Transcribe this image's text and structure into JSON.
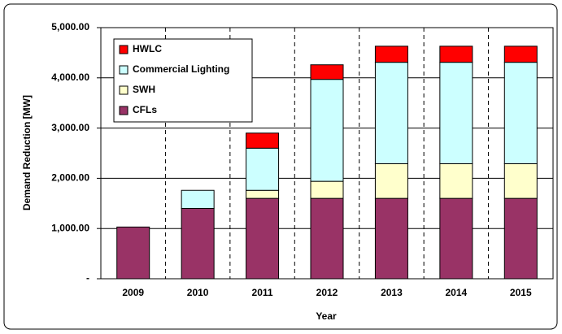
{
  "chart_data": {
    "type": "stacked_bar",
    "x_label": "Year",
    "y_label": "Demand Reduction [MW]",
    "categories": [
      "2009",
      "2010",
      "2011",
      "2012",
      "2013",
      "2014",
      "2015"
    ],
    "series": [
      {
        "name": "CFLs",
        "color": "#993366",
        "values": [
          1030,
          1400,
          1600,
          1600,
          1600,
          1600,
          1600
        ]
      },
      {
        "name": "SWH",
        "color": "#FFFFCC",
        "values": [
          0,
          0,
          160,
          340,
          690,
          690,
          690
        ]
      },
      {
        "name": "Commercial Lighting",
        "color": "#CCFFFF",
        "values": [
          0,
          360,
          840,
          2030,
          2020,
          2020,
          2020
        ]
      },
      {
        "name": "HWLC",
        "color": "#FF0000",
        "values": [
          0,
          0,
          300,
          290,
          320,
          320,
          320
        ]
      }
    ],
    "ylim": [
      0,
      5000
    ],
    "yticks": [
      {
        "value": 0,
        "label": "-"
      },
      {
        "value": 1000,
        "label": "1,000.00"
      },
      {
        "value": 2000,
        "label": "2,000.00"
      },
      {
        "value": 3000,
        "label": "3,000.00"
      },
      {
        "value": 4000,
        "label": "4,000.00"
      },
      {
        "value": 5000,
        "label": "5,000.00"
      }
    ],
    "grid": true,
    "legend": "upper left"
  }
}
